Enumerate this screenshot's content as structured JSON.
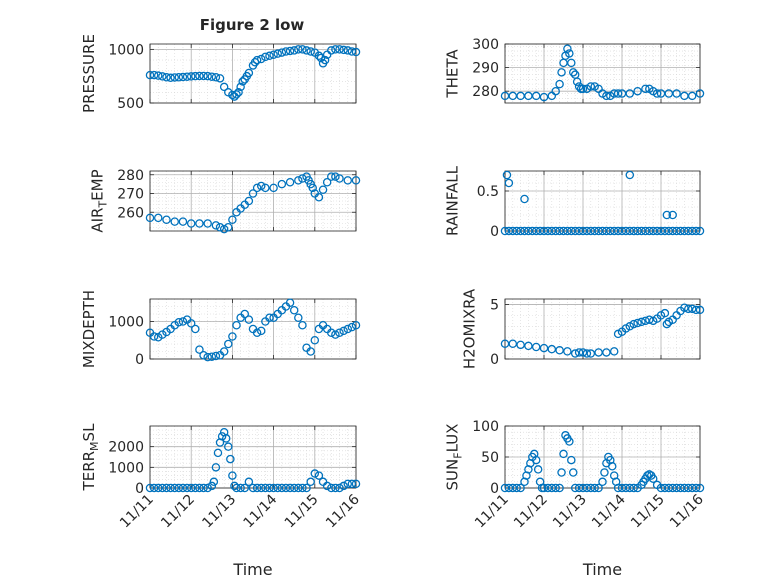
{
  "figure": {
    "title": "Figure 2 low"
  },
  "colors": {
    "marker": "#0072BD",
    "axis": "#262626",
    "grid": "#b0b0b0",
    "minor_grid": "#d6d6d6",
    "background": "#ffffff"
  },
  "chart_data": [
    {
      "type": "scatter",
      "ylabel": "PRESSURE",
      "xlabel": "",
      "xlim": [
        0,
        5
      ],
      "ylim": [
        500,
        1050
      ],
      "yticks": [
        500,
        1000
      ],
      "ytick_labels": [
        "500",
        "1000"
      ],
      "show_xtick_labels": false,
      "grid": "major and minor",
      "marker": "open circle",
      "x": [
        0.0,
        0.1,
        0.2,
        0.3,
        0.4,
        0.5,
        0.6,
        0.7,
        0.8,
        0.9,
        1.0,
        1.1,
        1.2,
        1.3,
        1.4,
        1.5,
        1.6,
        1.7,
        1.8,
        1.9,
        2.0,
        2.05,
        2.1,
        2.15,
        2.2,
        2.25,
        2.3,
        2.35,
        2.4,
        2.5,
        2.55,
        2.6,
        2.7,
        2.8,
        2.9,
        3.0,
        3.1,
        3.2,
        3.3,
        3.4,
        3.5,
        3.6,
        3.7,
        3.8,
        3.9,
        4.0,
        4.1,
        4.15,
        4.2,
        4.25,
        4.3,
        4.4,
        4.5,
        4.6,
        4.7,
        4.8,
        4.9,
        5.0
      ],
      "y": [
        760,
        760,
        755,
        748,
        740,
        735,
        738,
        740,
        742,
        745,
        748,
        750,
        752,
        752,
        750,
        745,
        740,
        730,
        650,
        600,
        575,
        560,
        580,
        600,
        650,
        700,
        720,
        750,
        780,
        850,
        880,
        900,
        910,
        930,
        940,
        950,
        960,
        970,
        980,
        985,
        990,
        1000,
        1000,
        990,
        980,
        970,
        940,
        920,
        870,
        900,
        950,
        990,
        1000,
        1000,
        995,
        990,
        980,
        975
      ]
    },
    {
      "type": "scatter",
      "ylabel": "THETA",
      "xlabel": "",
      "xlim": [
        0,
        5
      ],
      "ylim": [
        275,
        300
      ],
      "yticks": [
        280,
        290,
        300
      ],
      "ytick_labels": [
        "280",
        "290",
        "300"
      ],
      "show_xtick_labels": false,
      "grid": "major and minor",
      "marker": "open circle",
      "x": [
        0.0,
        0.2,
        0.4,
        0.6,
        0.8,
        1.0,
        1.2,
        1.3,
        1.4,
        1.45,
        1.5,
        1.55,
        1.6,
        1.65,
        1.7,
        1.75,
        1.8,
        1.85,
        1.9,
        1.95,
        2.0,
        2.1,
        2.2,
        2.3,
        2.4,
        2.5,
        2.6,
        2.7,
        2.8,
        2.9,
        3.0,
        3.2,
        3.4,
        3.6,
        3.7,
        3.8,
        3.9,
        4.0,
        4.2,
        4.4,
        4.6,
        4.8,
        5.0
      ],
      "y": [
        278,
        278,
        278,
        278,
        278,
        277.5,
        278,
        280,
        283,
        288,
        292,
        295,
        298,
        296,
        292,
        288,
        287,
        284,
        282,
        281,
        281,
        281,
        282,
        282,
        281,
        279,
        278,
        278,
        279,
        279,
        279,
        279,
        280,
        281,
        281,
        280,
        279,
        279,
        279,
        279,
        278,
        278,
        279
      ]
    },
    {
      "type": "scatter",
      "ylabel": "AIR_TEMP",
      "xlabel": "",
      "xlim": [
        0,
        5
      ],
      "ylim": [
        250,
        282
      ],
      "yticks": [
        260,
        270,
        280
      ],
      "ytick_labels": [
        "260",
        "270",
        "280"
      ],
      "show_xtick_labels": false,
      "grid": "major and minor",
      "marker": "open circle",
      "x": [
        0.0,
        0.2,
        0.4,
        0.6,
        0.8,
        1.0,
        1.2,
        1.4,
        1.6,
        1.7,
        1.8,
        1.9,
        2.0,
        2.1,
        2.2,
        2.3,
        2.4,
        2.5,
        2.6,
        2.7,
        2.8,
        3.0,
        3.2,
        3.4,
        3.6,
        3.7,
        3.8,
        3.85,
        3.9,
        3.95,
        4.0,
        4.1,
        4.2,
        4.3,
        4.4,
        4.5,
        4.6,
        4.8,
        5.0
      ],
      "y": [
        257,
        257,
        256,
        255,
        255,
        254,
        254,
        254,
        253,
        252,
        251,
        252,
        256,
        260,
        262,
        264,
        266,
        270,
        273,
        274,
        273,
        273,
        275,
        276,
        277,
        278,
        279,
        277,
        275,
        273,
        270,
        268,
        272,
        276,
        279,
        279,
        278,
        277,
        277
      ]
    },
    {
      "type": "scatter",
      "ylabel": "RAINFALL",
      "xlabel": "",
      "xlim": [
        0,
        5
      ],
      "ylim": [
        0,
        0.75
      ],
      "yticks": [
        0,
        0.5
      ],
      "ytick_labels": [
        "0",
        "0.5"
      ],
      "show_xtick_labels": false,
      "grid": "major and minor",
      "marker": "open circle",
      "x": [
        0.0,
        0.1,
        0.2,
        0.3,
        0.4,
        0.5,
        0.6,
        0.7,
        0.8,
        0.9,
        1.0,
        1.1,
        1.2,
        1.3,
        1.4,
        1.5,
        1.6,
        1.7,
        1.8,
        1.9,
        2.0,
        2.1,
        2.2,
        2.3,
        2.4,
        2.5,
        2.6,
        2.7,
        2.8,
        2.9,
        3.0,
        3.1,
        3.2,
        3.3,
        3.4,
        3.5,
        3.6,
        3.7,
        3.8,
        3.9,
        4.0,
        4.1,
        4.2,
        4.3,
        4.4,
        4.5,
        4.6,
        4.7,
        4.8,
        4.9,
        5.0,
        0.05,
        0.1,
        0.5,
        3.2,
        4.15,
        4.3
      ],
      "y": [
        0,
        0,
        0,
        0,
        0,
        0,
        0,
        0,
        0,
        0,
        0,
        0,
        0,
        0,
        0,
        0,
        0,
        0,
        0,
        0,
        0,
        0,
        0,
        0,
        0,
        0,
        0,
        0,
        0,
        0,
        0,
        0,
        0,
        0,
        0,
        0,
        0,
        0,
        0,
        0,
        0,
        0,
        0,
        0,
        0,
        0,
        0,
        0,
        0,
        0,
        0,
        0.7,
        0.6,
        0.4,
        0.7,
        0.2,
        0.2
      ]
    },
    {
      "type": "scatter",
      "ylabel": "MIXDEPTH",
      "xlabel": "",
      "xlim": [
        0,
        5
      ],
      "ylim": [
        0,
        1600
      ],
      "yticks": [
        0,
        1000
      ],
      "ytick_labels": [
        "0",
        "1000"
      ],
      "show_xtick_labels": false,
      "grid": "major and minor",
      "marker": "open circle",
      "x": [
        0.0,
        0.1,
        0.2,
        0.3,
        0.4,
        0.5,
        0.6,
        0.7,
        0.8,
        0.9,
        1.0,
        1.1,
        1.2,
        1.3,
        1.4,
        1.5,
        1.6,
        1.7,
        1.8,
        1.9,
        2.0,
        2.1,
        2.2,
        2.3,
        2.4,
        2.5,
        2.6,
        2.7,
        2.8,
        2.9,
        3.0,
        3.1,
        3.2,
        3.3,
        3.4,
        3.5,
        3.6,
        3.7,
        3.8,
        3.9,
        4.0,
        4.1,
        4.2,
        4.3,
        4.4,
        4.5,
        4.6,
        4.7,
        4.8,
        4.9,
        5.0
      ],
      "y": [
        700,
        600,
        580,
        650,
        720,
        800,
        900,
        980,
        1000,
        1050,
        950,
        800,
        250,
        100,
        50,
        60,
        80,
        100,
        200,
        400,
        600,
        900,
        1100,
        1200,
        1050,
        800,
        700,
        750,
        1000,
        1100,
        1100,
        1200,
        1300,
        1400,
        1500,
        1300,
        1100,
        900,
        300,
        200,
        500,
        800,
        900,
        800,
        700,
        650,
        700,
        750,
        800,
        850,
        900
      ]
    },
    {
      "type": "scatter",
      "ylabel": "H2OMIXRA",
      "xlabel": "",
      "xlim": [
        0,
        5
      ],
      "ylim": [
        0,
        5.5
      ],
      "yticks": [
        0,
        5
      ],
      "ytick_labels": [
        "0",
        "5"
      ],
      "show_xtick_labels": false,
      "grid": "major and minor",
      "marker": "open circle",
      "x": [
        0.0,
        0.2,
        0.4,
        0.6,
        0.8,
        1.0,
        1.2,
        1.4,
        1.6,
        1.8,
        1.9,
        2.0,
        2.1,
        2.2,
        2.4,
        2.6,
        2.8,
        2.9,
        3.0,
        3.1,
        3.2,
        3.3,
        3.4,
        3.5,
        3.6,
        3.7,
        3.8,
        3.9,
        4.0,
        4.1,
        4.15,
        4.2,
        4.3,
        4.4,
        4.5,
        4.6,
        4.7,
        4.8,
        4.9,
        5.0
      ],
      "y": [
        1.4,
        1.4,
        1.3,
        1.2,
        1.1,
        1.0,
        0.9,
        0.8,
        0.7,
        0.5,
        0.6,
        0.6,
        0.5,
        0.5,
        0.6,
        0.6,
        0.7,
        2.3,
        2.5,
        2.8,
        3.0,
        3.2,
        3.3,
        3.4,
        3.5,
        3.6,
        3.5,
        3.7,
        4.0,
        4.2,
        3.2,
        3.4,
        3.6,
        4.0,
        4.4,
        4.7,
        4.6,
        4.6,
        4.5,
        4.5
      ]
    },
    {
      "type": "scatter",
      "ylabel": "TERR_MSL",
      "xlabel": "Time",
      "xlim": [
        0,
        5
      ],
      "ylim": [
        0,
        3000
      ],
      "yticks": [
        0,
        1000,
        2000
      ],
      "ytick_labels": [
        "0",
        "1000",
        "2000"
      ],
      "xticks": [
        0,
        1,
        2,
        3,
        4,
        5
      ],
      "xtick_labels": [
        "11/11",
        "11/12",
        "11/13",
        "11/14",
        "11/15",
        "11/16"
      ],
      "grid": "major and minor",
      "marker": "open circle",
      "x": [
        0.0,
        0.1,
        0.2,
        0.3,
        0.4,
        0.5,
        0.6,
        0.7,
        0.8,
        0.9,
        1.0,
        1.1,
        1.2,
        1.3,
        1.4,
        1.5,
        1.55,
        1.6,
        1.65,
        1.7,
        1.75,
        1.8,
        1.85,
        1.9,
        1.95,
        2.0,
        2.05,
        2.1,
        2.2,
        2.3,
        2.4,
        2.5,
        2.6,
        2.7,
        2.8,
        2.9,
        3.0,
        3.1,
        3.2,
        3.3,
        3.4,
        3.5,
        3.6,
        3.7,
        3.8,
        3.9,
        4.0,
        4.1,
        4.2,
        4.3,
        4.4,
        4.5,
        4.6,
        4.7,
        4.8,
        4.9,
        5.0
      ],
      "y": [
        0,
        0,
        0,
        0,
        0,
        0,
        0,
        0,
        0,
        0,
        0,
        0,
        0,
        0,
        0,
        100,
        300,
        1000,
        1700,
        2200,
        2500,
        2700,
        2400,
        2000,
        1400,
        600,
        100,
        0,
        0,
        0,
        300,
        0,
        0,
        0,
        0,
        0,
        0,
        0,
        0,
        0,
        0,
        0,
        0,
        0,
        0,
        300,
        700,
        600,
        300,
        100,
        0,
        0,
        0,
        100,
        200,
        200,
        200
      ]
    },
    {
      "type": "scatter",
      "ylabel": "SUN_FLUX",
      "xlabel": "Time",
      "xlim": [
        0,
        5
      ],
      "ylim": [
        0,
        100
      ],
      "yticks": [
        0,
        50,
        100
      ],
      "ytick_labels": [
        "0",
        "50",
        "100"
      ],
      "xticks": [
        0,
        1,
        2,
        3,
        4,
        5
      ],
      "xtick_labels": [
        "11/11",
        "11/12",
        "11/13",
        "11/14",
        "11/15",
        "11/16"
      ],
      "grid": "major and minor",
      "marker": "open circle",
      "x": [
        0.0,
        0.1,
        0.2,
        0.3,
        0.4,
        0.5,
        0.55,
        0.6,
        0.65,
        0.7,
        0.75,
        0.8,
        0.85,
        0.9,
        0.95,
        1.0,
        1.1,
        1.2,
        1.3,
        1.4,
        1.45,
        1.5,
        1.55,
        1.6,
        1.65,
        1.7,
        1.75,
        1.8,
        1.9,
        2.0,
        2.1,
        2.2,
        2.3,
        2.4,
        2.5,
        2.55,
        2.6,
        2.65,
        2.7,
        2.75,
        2.8,
        2.85,
        2.9,
        3.0,
        3.1,
        3.2,
        3.3,
        3.4,
        3.5,
        3.55,
        3.6,
        3.65,
        3.7,
        3.75,
        3.8,
        3.9,
        4.0,
        4.1,
        4.2,
        4.3,
        4.4,
        4.5,
        4.6,
        4.7,
        4.8,
        4.9,
        5.0
      ],
      "y": [
        0,
        0,
        0,
        0,
        0,
        10,
        20,
        30,
        40,
        50,
        55,
        45,
        30,
        10,
        0,
        0,
        0,
        0,
        0,
        0,
        25,
        55,
        85,
        80,
        75,
        45,
        25,
        0,
        0,
        0,
        0,
        0,
        0,
        0,
        10,
        25,
        40,
        50,
        45,
        35,
        20,
        10,
        0,
        0,
        0,
        0,
        0,
        0,
        5,
        10,
        15,
        20,
        22,
        20,
        15,
        5,
        0,
        0,
        0,
        0,
        0,
        0,
        0,
        0,
        0,
        0,
        0
      ]
    }
  ]
}
